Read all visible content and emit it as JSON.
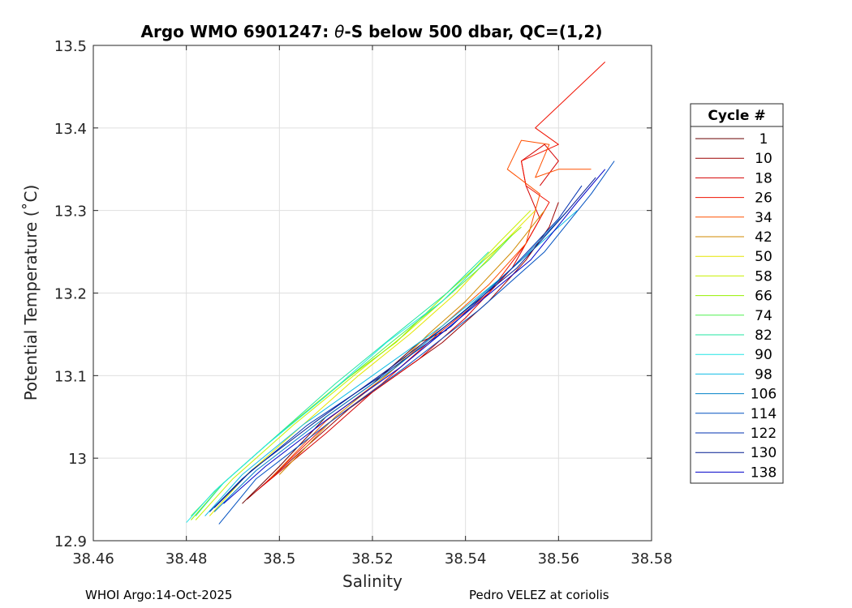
{
  "chart_data": {
    "type": "line",
    "title": "Argo WMO 6901247: θ-S below 500 dbar,  QC=(1,2)",
    "title_parts": {
      "before": "Argo WMO 6901247: ",
      "theta": "θ",
      "after": "-S below 500 dbar,  QC=(1,2)"
    },
    "xlabel": "Salinity",
    "ylabel": "Potential Temperature (˚C)",
    "xlim": [
      38.46,
      38.58
    ],
    "ylim": [
      12.9,
      13.5
    ],
    "xticks": [
      38.46,
      38.48,
      38.5,
      38.52,
      38.54,
      38.56,
      38.58
    ],
    "xtick_labels": [
      "38.46",
      "38.48",
      "38.5",
      "38.52",
      "38.54",
      "38.56",
      "38.58"
    ],
    "yticks": [
      12.9,
      13.0,
      13.1,
      13.2,
      13.3,
      13.4,
      13.5
    ],
    "ytick_labels": [
      "12.9",
      "13",
      "13.1",
      "13.2",
      "13.3",
      "13.4",
      "13.5"
    ],
    "grid": true,
    "legend": {
      "title": "Cycle #",
      "position": "right",
      "entries": [
        "1",
        "10",
        "18",
        "26",
        "34",
        "42",
        "50",
        "58",
        "66",
        "74",
        "82",
        "90",
        "98",
        "106",
        "114",
        "122",
        "130",
        "138"
      ],
      "colors": [
        "#6a0000",
        "#9c0000",
        "#d40000",
        "#f01000",
        "#ff5000",
        "#d08a00",
        "#e6e600",
        "#c8f000",
        "#96f000",
        "#50f050",
        "#20e6a0",
        "#20e6e6",
        "#10bde6",
        "#0080c8",
        "#0050c0",
        "#0030b0",
        "#001a90",
        "#0000c8"
      ]
    },
    "series": [
      {
        "name": "1",
        "color": "#6a0000",
        "points": [
          [
            38.492,
            12.945
          ],
          [
            38.5,
            12.99
          ],
          [
            38.51,
            13.05
          ],
          [
            38.52,
            13.09
          ],
          [
            38.53,
            13.14
          ],
          [
            38.536,
            13.155
          ]
        ]
      },
      {
        "name": "10",
        "color": "#9c0000",
        "points": [
          [
            38.493,
            12.95
          ],
          [
            38.505,
            13.01
          ],
          [
            38.515,
            13.06
          ],
          [
            38.525,
            13.1
          ],
          [
            38.535,
            13.14
          ],
          [
            38.545,
            13.19
          ],
          [
            38.553,
            13.24
          ],
          [
            38.558,
            13.28
          ],
          [
            38.56,
            13.31
          ]
        ]
      },
      {
        "name": "18",
        "color": "#d40000",
        "points": [
          [
            38.495,
            12.96
          ],
          [
            38.51,
            13.03
          ],
          [
            38.52,
            13.08
          ],
          [
            38.53,
            13.12
          ],
          [
            38.54,
            13.17
          ],
          [
            38.55,
            13.23
          ],
          [
            38.556,
            13.29
          ],
          [
            38.553,
            13.33
          ],
          [
            38.552,
            13.36
          ],
          [
            38.557,
            13.38
          ],
          [
            38.56,
            13.36
          ],
          [
            38.556,
            13.33
          ]
        ]
      },
      {
        "name": "26",
        "color": "#f01000",
        "points": [
          [
            38.497,
            12.97
          ],
          [
            38.51,
            13.04
          ],
          [
            38.522,
            13.09
          ],
          [
            38.534,
            13.15
          ],
          [
            38.545,
            13.2
          ],
          [
            38.553,
            13.26
          ],
          [
            38.558,
            13.31
          ],
          [
            38.553,
            13.33
          ],
          [
            38.552,
            13.36
          ],
          [
            38.56,
            13.38
          ],
          [
            38.555,
            13.4
          ],
          [
            38.57,
            13.48
          ]
        ]
      },
      {
        "name": "34",
        "color": "#ff5000",
        "points": [
          [
            38.498,
            12.975
          ],
          [
            38.51,
            13.045
          ],
          [
            38.523,
            13.1
          ],
          [
            38.534,
            13.155
          ],
          [
            38.545,
            13.21
          ],
          [
            38.553,
            13.26
          ],
          [
            38.556,
            13.32
          ],
          [
            38.549,
            13.35
          ],
          [
            38.552,
            13.385
          ],
          [
            38.558,
            13.38
          ],
          [
            38.555,
            13.34
          ],
          [
            38.56,
            13.35
          ],
          [
            38.567,
            13.35
          ]
        ]
      },
      {
        "name": "42",
        "color": "#d08a00",
        "points": [
          [
            38.5,
            12.98
          ],
          [
            38.512,
            13.05
          ],
          [
            38.524,
            13.105
          ],
          [
            38.532,
            13.15
          ],
          [
            38.54,
            13.19
          ],
          [
            38.55,
            13.25
          ],
          [
            38.557,
            13.3
          ]
        ]
      },
      {
        "name": "50",
        "color": "#e6e600",
        "points": [
          [
            38.485,
            12.93
          ],
          [
            38.493,
            12.98
          ],
          [
            38.505,
            13.04
          ],
          [
            38.517,
            13.1
          ],
          [
            38.528,
            13.15
          ],
          [
            38.538,
            13.2
          ],
          [
            38.548,
            13.26
          ],
          [
            38.555,
            13.3
          ]
        ]
      },
      {
        "name": "58",
        "color": "#c8f000",
        "points": [
          [
            38.482,
            12.925
          ],
          [
            38.49,
            12.975
          ],
          [
            38.503,
            13.04
          ],
          [
            38.516,
            13.1
          ],
          [
            38.527,
            13.15
          ],
          [
            38.537,
            13.2
          ],
          [
            38.547,
            13.26
          ],
          [
            38.554,
            13.3
          ]
        ]
      },
      {
        "name": "66",
        "color": "#96f000",
        "points": [
          [
            38.481,
            12.925
          ],
          [
            38.488,
            12.97
          ],
          [
            38.5,
            13.03
          ],
          [
            38.513,
            13.09
          ],
          [
            38.525,
            13.14
          ],
          [
            38.536,
            13.2
          ],
          [
            38.546,
            13.25
          ],
          [
            38.552,
            13.28
          ]
        ]
      },
      {
        "name": "74",
        "color": "#50f050",
        "points": [
          [
            38.481,
            12.93
          ],
          [
            38.487,
            12.965
          ],
          [
            38.498,
            13.02
          ],
          [
            38.511,
            13.08
          ],
          [
            38.524,
            13.14
          ],
          [
            38.535,
            13.19
          ],
          [
            38.545,
            13.24
          ],
          [
            38.55,
            13.27
          ]
        ]
      },
      {
        "name": "82",
        "color": "#20e6a0",
        "points": [
          [
            38.482,
            12.93
          ],
          [
            38.488,
            12.97
          ],
          [
            38.5,
            13.03
          ],
          [
            38.512,
            13.09
          ],
          [
            38.525,
            13.15
          ],
          [
            38.536,
            13.2
          ],
          [
            38.545,
            13.25
          ]
        ]
      },
      {
        "name": "90",
        "color": "#20e6e6",
        "points": [
          [
            38.48,
            12.922
          ],
          [
            38.486,
            12.96
          ],
          [
            38.497,
            13.015
          ],
          [
            38.51,
            13.075
          ],
          [
            38.523,
            13.14
          ],
          [
            38.535,
            13.19
          ],
          [
            38.544,
            13.24
          ]
        ]
      },
      {
        "name": "98",
        "color": "#10bde6",
        "points": [
          [
            38.484,
            12.93
          ],
          [
            38.492,
            12.98
          ],
          [
            38.505,
            13.04
          ],
          [
            38.52,
            13.1
          ],
          [
            38.535,
            13.16
          ],
          [
            38.548,
            13.22
          ],
          [
            38.558,
            13.27
          ],
          [
            38.564,
            13.3
          ]
        ]
      },
      {
        "name": "106",
        "color": "#0080c8",
        "points": [
          [
            38.486,
            12.935
          ],
          [
            38.495,
            12.985
          ],
          [
            38.51,
            13.05
          ],
          [
            38.525,
            13.11
          ],
          [
            38.54,
            13.18
          ],
          [
            38.552,
            13.24
          ],
          [
            38.562,
            13.3
          ]
        ]
      },
      {
        "name": "114",
        "color": "#0050c0",
        "points": [
          [
            38.487,
            12.92
          ],
          [
            38.495,
            12.975
          ],
          [
            38.51,
            13.04
          ],
          [
            38.527,
            13.11
          ],
          [
            38.543,
            13.18
          ],
          [
            38.557,
            13.25
          ],
          [
            38.567,
            13.32
          ],
          [
            38.572,
            13.36
          ]
        ]
      },
      {
        "name": "122",
        "color": "#0030b0",
        "points": [
          [
            38.485,
            12.935
          ],
          [
            38.492,
            12.975
          ],
          [
            38.506,
            13.04
          ],
          [
            38.522,
            13.1
          ],
          [
            38.537,
            13.16
          ],
          [
            38.55,
            13.23
          ],
          [
            38.56,
            13.29
          ],
          [
            38.565,
            13.33
          ]
        ]
      },
      {
        "name": "130",
        "color": "#001a90",
        "points": [
          [
            38.486,
            12.94
          ],
          [
            38.494,
            12.985
          ],
          [
            38.508,
            13.045
          ],
          [
            38.524,
            13.11
          ],
          [
            38.538,
            13.17
          ],
          [
            38.551,
            13.23
          ],
          [
            38.562,
            13.3
          ],
          [
            38.568,
            13.34
          ]
        ]
      },
      {
        "name": "138",
        "color": "#0000c8",
        "points": [
          [
            38.488,
            12.945
          ],
          [
            38.497,
            12.99
          ],
          [
            38.511,
            13.05
          ],
          [
            38.526,
            13.11
          ],
          [
            38.541,
            13.18
          ],
          [
            38.554,
            13.24
          ],
          [
            38.564,
            13.31
          ],
          [
            38.57,
            13.35
          ]
        ]
      }
    ]
  },
  "footer": {
    "left": "WHOI Argo:14-Oct-2025",
    "right": "Pedro VELEZ at coriolis"
  }
}
